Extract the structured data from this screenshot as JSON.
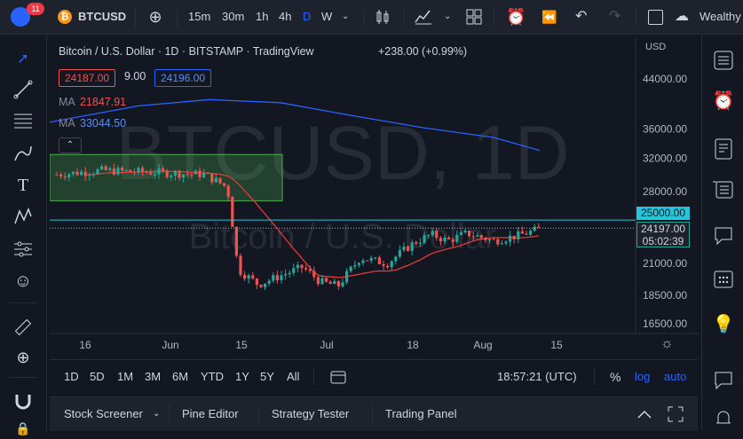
{
  "topbar": {
    "notifications": "11",
    "symbol": "BTCUSD",
    "intervals": [
      "15m",
      "30m",
      "1h",
      "4h",
      "D",
      "W"
    ],
    "active_interval": "D",
    "workspace": "Wealthy"
  },
  "chart": {
    "title": "Bitcoin / U.S. Dollar · 1D · BITSTAMP · TradingView",
    "change": "+238.00 (+0.99%)",
    "bid": "24187.00",
    "spread": "9.00",
    "ask": "24196.00",
    "ma1_label": "MA",
    "ma1_value": "21847.91",
    "ma2_label": "MA",
    "ma2_value": "33044.50",
    "watermark_symbol": "BTCUSD, 1D",
    "watermark_name": "Bitcoin / U.S. Dollar",
    "currency": "USD",
    "price_label": "24197.00",
    "countdown": "05:02:39",
    "level_label": "25000.00",
    "colors": {
      "up": "#26a69a",
      "down": "#ef5350",
      "ma_fast": "#e53935",
      "ma_slow": "#2962ff",
      "level": "#26c6da"
    }
  },
  "chart_data": {
    "type": "candlestick",
    "y_ticks": [
      "44000.00",
      "36000.00",
      "32000.00",
      "28000.00",
      "21000.00",
      "18500.00",
      "16500.00"
    ],
    "y_scale": "log",
    "ylim": [
      15800,
      50000
    ],
    "x_ticks": [
      "16",
      "Jun",
      "15",
      "Jul",
      "18",
      "Aug",
      "15"
    ],
    "horizontal_level": 25000
  },
  "bottombar": {
    "ranges": [
      "1D",
      "5D",
      "1M",
      "3M",
      "6M",
      "YTD",
      "1Y",
      "5Y",
      "All"
    ],
    "clock": "18:57:21 (UTC)",
    "percent": "%",
    "log": "log",
    "auto": "auto"
  },
  "panels": {
    "stock_screener": "Stock Screener",
    "pine_editor": "Pine Editor",
    "strategy_tester": "Strategy Tester",
    "trading_panel": "Trading Panel"
  }
}
